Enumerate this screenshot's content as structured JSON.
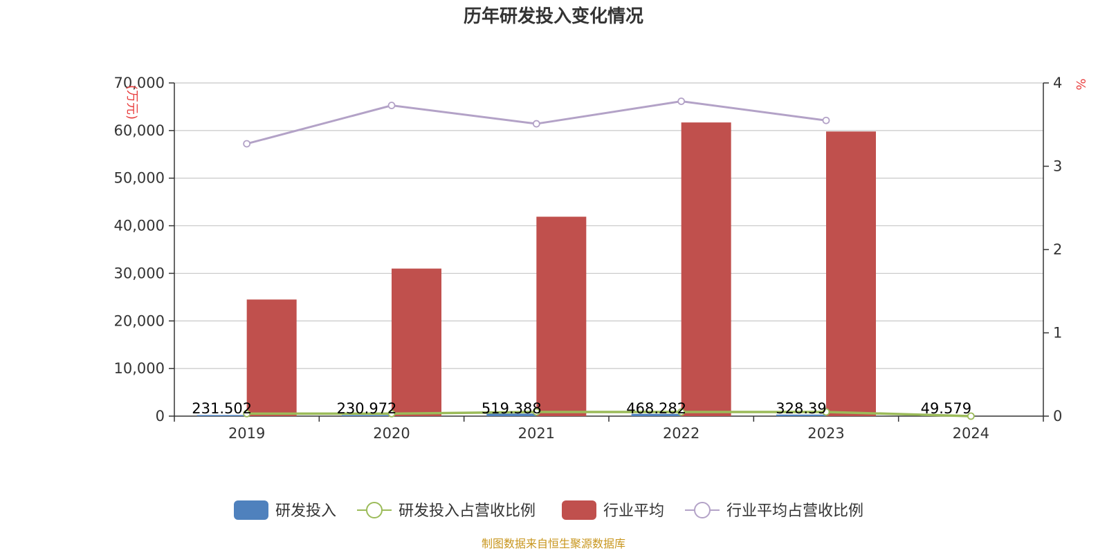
{
  "chart_data": {
    "type": "bar",
    "title": "历年研发投入变化情况",
    "categories": [
      "2019",
      "2020",
      "2021",
      "2022",
      "2023",
      "2024"
    ],
    "left_axis": {
      "unit_label": "(万元)",
      "ylim": [
        0,
        70000
      ],
      "ticks": [
        0,
        10000,
        20000,
        30000,
        40000,
        50000,
        60000,
        70000
      ],
      "tick_labels": [
        "0",
        "10,000",
        "20,000",
        "30,000",
        "40,000",
        "50,000",
        "60,000",
        "70,000"
      ]
    },
    "right_axis": {
      "unit_label": "%",
      "ylim": [
        0,
        4
      ],
      "ticks": [
        0,
        1,
        2,
        3,
        4
      ],
      "tick_labels": [
        "0",
        "1",
        "2",
        "3",
        "4"
      ]
    },
    "series": [
      {
        "name": "研发投入",
        "type": "bar",
        "axis": "left",
        "color": "#4f81bd",
        "values": [
          231.502,
          230.972,
          519.388,
          468.282,
          328.39,
          49.579
        ],
        "data_labels": [
          "231.502",
          "230.972",
          "519.388",
          "468.282",
          "328.39",
          "49.579"
        ]
      },
      {
        "name": "研发投入占营收比例",
        "type": "line",
        "axis": "right",
        "color": "#9bbb59",
        "values": [
          0.03,
          0.03,
          0.05,
          0.05,
          0.05,
          0.0
        ]
      },
      {
        "name": "行业平均",
        "type": "bar",
        "axis": "left",
        "color": "#c0504d",
        "values": [
          24500,
          31000,
          41900,
          61700,
          59800,
          null
        ]
      },
      {
        "name": "行业平均占营收比例",
        "type": "line",
        "axis": "right",
        "color": "#b3a2c7",
        "values": [
          3.27,
          3.73,
          3.51,
          3.78,
          3.55,
          null
        ]
      }
    ],
    "grid": true,
    "legend_position": "bottom"
  },
  "source_note": "制图数据来自恒生聚源数据库"
}
